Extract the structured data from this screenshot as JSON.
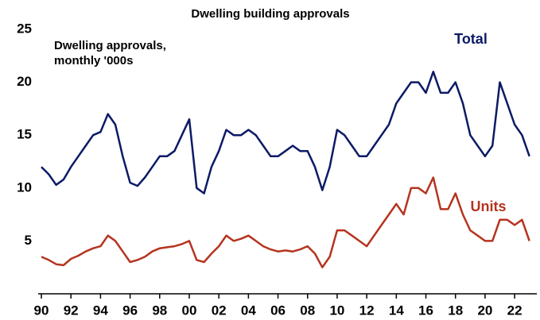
{
  "chart_data": {
    "type": "line",
    "title": "Dwelling building approvals",
    "annotation_lines": [
      "Dwelling approvals,",
      "monthly '000s"
    ],
    "x": [
      1990,
      1990.5,
      1991,
      1991.5,
      1992,
      1992.5,
      1993,
      1993.5,
      1994,
      1994.5,
      1995,
      1995.5,
      1996,
      1996.5,
      1997,
      1997.5,
      1998,
      1998.5,
      1999,
      1999.5,
      2000,
      2000.5,
      2001,
      2001.5,
      2002,
      2002.5,
      2003,
      2003.5,
      2004,
      2004.5,
      2005,
      2005.5,
      2006,
      2006.5,
      2007,
      2007.5,
      2008,
      2008.5,
      2009,
      2009.5,
      2010,
      2010.5,
      2011,
      2011.5,
      2012,
      2012.5,
      2013,
      2013.5,
      2014,
      2014.5,
      2015,
      2015.5,
      2016,
      2016.5,
      2017,
      2017.5,
      2018,
      2018.5,
      2019,
      2019.5,
      2020,
      2020.5,
      2021,
      2021.5,
      2022,
      2022.5,
      2023
    ],
    "series": [
      {
        "name": "Total",
        "color": "#0c1a66",
        "values": [
          12,
          11.3,
          10.3,
          10.8,
          12,
          13,
          14,
          15,
          15.3,
          17,
          16,
          13,
          10.5,
          10.2,
          11,
          12,
          13,
          13,
          13.5,
          15,
          16.5,
          10,
          9.5,
          12,
          13.5,
          15.5,
          15,
          15,
          15.5,
          15,
          14,
          13,
          13,
          13.5,
          14,
          13.5,
          13.5,
          12,
          9.8,
          12,
          15.5,
          15,
          14,
          13,
          13,
          14,
          15,
          16,
          18,
          19,
          20,
          20,
          19,
          21,
          19,
          19,
          20,
          18,
          15,
          14,
          13,
          14,
          20,
          18,
          16,
          15,
          13
        ]
      },
      {
        "name": "Units",
        "color": "#b5341f",
        "values": [
          3.5,
          3.2,
          2.8,
          2.7,
          3.3,
          3.6,
          4,
          4.3,
          4.5,
          5.5,
          5,
          4,
          3,
          3.2,
          3.5,
          4,
          4.3,
          4.4,
          4.5,
          4.7,
          5,
          3.2,
          3,
          3.8,
          4.5,
          5.5,
          5,
          5.2,
          5.5,
          5,
          4.5,
          4.2,
          4,
          4.1,
          4,
          4.2,
          4.5,
          3.8,
          2.5,
          3.5,
          6,
          6,
          5.5,
          5,
          4.5,
          5.5,
          6.5,
          7.5,
          8.5,
          7.5,
          10,
          10,
          9.5,
          11,
          8,
          8,
          9.5,
          7.5,
          6,
          5.5,
          5,
          5,
          7,
          7,
          6.5,
          7,
          5
        ]
      }
    ],
    "xlim": [
      1990,
      2023.5
    ],
    "xticks": [
      {
        "value": 1990,
        "label": "90"
      },
      {
        "value": 1992,
        "label": "92"
      },
      {
        "value": 1994,
        "label": "94"
      },
      {
        "value": 1996,
        "label": "96"
      },
      {
        "value": 1998,
        "label": "98"
      },
      {
        "value": 2000,
        "label": "00"
      },
      {
        "value": 2002,
        "label": "02"
      },
      {
        "value": 2004,
        "label": "04"
      },
      {
        "value": 2006,
        "label": "06"
      },
      {
        "value": 2008,
        "label": "08"
      },
      {
        "value": 2010,
        "label": "10"
      },
      {
        "value": 2012,
        "label": "12"
      },
      {
        "value": 2014,
        "label": "14"
      },
      {
        "value": 2016,
        "label": "16"
      },
      {
        "value": 2018,
        "label": "18"
      },
      {
        "value": 2020,
        "label": "20"
      },
      {
        "value": 2022,
        "label": "22"
      }
    ],
    "ylim": [
      0,
      25
    ],
    "yticks": [
      5,
      10,
      15,
      20,
      25
    ],
    "grid": false
  }
}
